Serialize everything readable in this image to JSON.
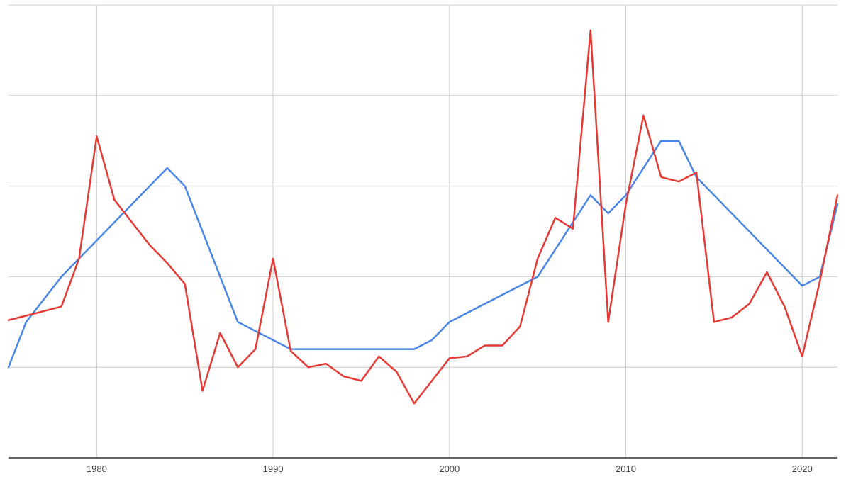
{
  "chart_data": {
    "type": "line",
    "title": "",
    "xlabel": "",
    "ylabel": "",
    "xlim": [
      1975,
      2022
    ],
    "ylim": [
      0,
      5
    ],
    "grid": true,
    "x_ticks": [
      1980,
      1990,
      2000,
      2010,
      2020
    ],
    "y_gridlines": [
      1,
      2,
      3,
      4,
      5
    ],
    "legend": "none",
    "series": [
      {
        "color": "#4a86e8",
        "x": [
          1975,
          1976,
          1978,
          1980,
          1984,
          1985,
          1988,
          1991,
          1998,
          1999,
          2000,
          2005,
          2008,
          2009,
          2010,
          2012,
          2013,
          2014,
          2020,
          2021,
          2022
        ],
        "y": [
          1.0,
          1.5,
          2.0,
          2.4,
          3.2,
          3.0,
          1.5,
          1.2,
          1.2,
          1.3,
          1.5,
          2.0,
          2.9,
          2.7,
          2.9,
          3.5,
          3.5,
          3.1,
          1.9,
          2.0,
          2.8
        ]
      },
      {
        "color": "#e53935",
        "x": [
          1975,
          1978,
          1979,
          1980,
          1981,
          1982,
          1983,
          1984,
          1985,
          1986,
          1987,
          1988,
          1989,
          1990,
          1991,
          1992,
          1993,
          1994,
          1995,
          1996,
          1997,
          1998,
          1999,
          2000,
          2001,
          2002,
          2003,
          2004,
          2005,
          2006,
          2007,
          2008,
          2009,
          2010,
          2011,
          2012,
          2013,
          2014,
          2015,
          2016,
          2017,
          2018,
          2019,
          2020,
          2021,
          2022
        ],
        "y": [
          1.52,
          1.67,
          2.2,
          3.55,
          2.85,
          2.6,
          2.35,
          2.15,
          1.92,
          0.74,
          1.38,
          1.0,
          1.2,
          2.2,
          1.18,
          1.0,
          1.04,
          0.9,
          0.85,
          1.12,
          0.95,
          0.6,
          0.85,
          1.1,
          1.12,
          1.24,
          1.24,
          1.45,
          2.2,
          2.65,
          2.53,
          4.72,
          1.5,
          2.8,
          3.78,
          3.1,
          3.05,
          3.15,
          1.5,
          1.55,
          1.7,
          2.05,
          1.67,
          1.12,
          1.95,
          2.9
        ]
      }
    ]
  }
}
